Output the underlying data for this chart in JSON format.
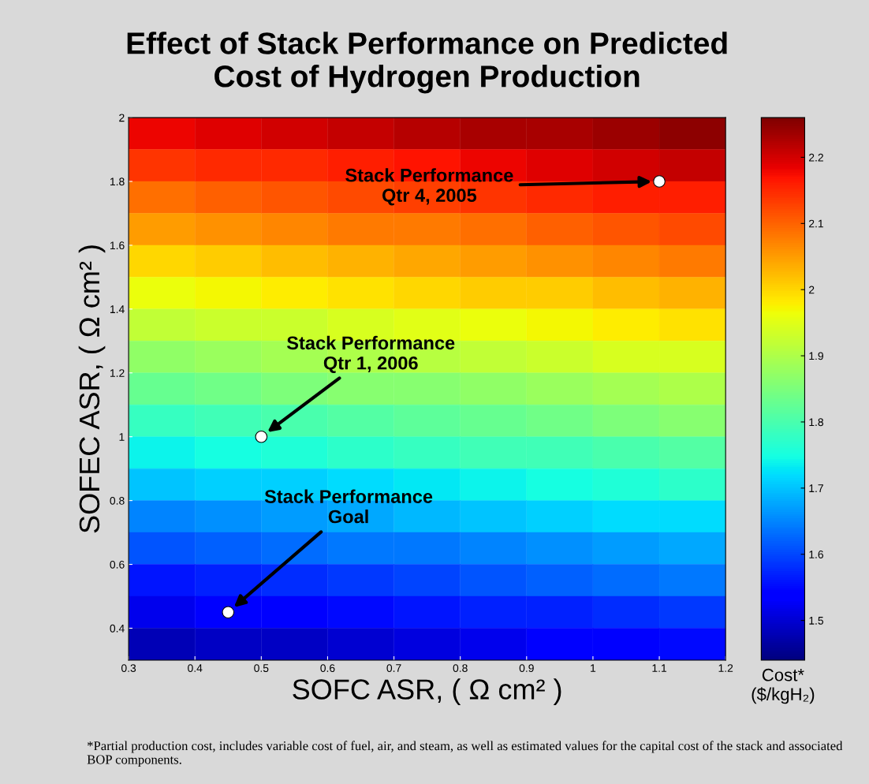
{
  "chart_data": {
    "type": "heatmap",
    "title": "Effect of Stack Performance on Predicted\nCost of Hydrogen Production",
    "xlabel": "SOFC ASR, ( Ω cm² )",
    "ylabel": "SOFEC ASR, ( Ω cm² )",
    "clabel": "Cost*\n($/kgH₂)",
    "xlim": [
      0.3,
      1.2
    ],
    "ylim": [
      0.3,
      2
    ],
    "xticks": [
      0.3,
      0.4,
      0.5,
      0.6,
      0.7,
      0.8,
      0.9,
      1,
      1.1,
      1.2
    ],
    "yticks": [
      0.4,
      0.6,
      0.8,
      1,
      1.2,
      1.4,
      1.6,
      1.8,
      2
    ],
    "clim": [
      1.44,
      2.26
    ],
    "cticks": [
      1.5,
      1.6,
      1.7,
      1.8,
      1.9,
      2,
      2.1,
      2.2
    ],
    "cells": [
      [
        2.18,
        2.19,
        2.2,
        2.21,
        2.22,
        2.23,
        2.23,
        2.24,
        2.25
      ],
      [
        2.14,
        2.15,
        2.15,
        2.16,
        2.17,
        2.18,
        2.19,
        2.2,
        2.21
      ],
      [
        2.09,
        2.1,
        2.11,
        2.12,
        2.13,
        2.14,
        2.15,
        2.16,
        2.16
      ],
      [
        2.05,
        2.06,
        2.07,
        2.08,
        2.08,
        2.09,
        2.1,
        2.11,
        2.12
      ],
      [
        2.0,
        2.01,
        2.02,
        2.03,
        2.04,
        2.05,
        2.06,
        2.07,
        2.08
      ],
      [
        1.96,
        1.97,
        1.98,
        1.99,
        2.0,
        2.01,
        2.01,
        2.02,
        2.03
      ],
      [
        1.92,
        1.93,
        1.93,
        1.94,
        1.95,
        1.96,
        1.97,
        1.98,
        1.99
      ],
      [
        1.87,
        1.88,
        1.89,
        1.9,
        1.91,
        1.92,
        1.93,
        1.94,
        1.94
      ],
      [
        1.83,
        1.84,
        1.85,
        1.86,
        1.86,
        1.87,
        1.88,
        1.89,
        1.9
      ],
      [
        1.78,
        1.79,
        1.8,
        1.81,
        1.82,
        1.83,
        1.84,
        1.85,
        1.86
      ],
      [
        1.74,
        1.75,
        1.76,
        1.77,
        1.78,
        1.79,
        1.79,
        1.8,
        1.81
      ],
      [
        1.7,
        1.71,
        1.71,
        1.72,
        1.73,
        1.74,
        1.75,
        1.76,
        1.77
      ],
      [
        1.65,
        1.66,
        1.67,
        1.68,
        1.69,
        1.7,
        1.71,
        1.72,
        1.72
      ],
      [
        1.61,
        1.62,
        1.63,
        1.64,
        1.64,
        1.65,
        1.66,
        1.67,
        1.68
      ],
      [
        1.56,
        1.57,
        1.58,
        1.59,
        1.6,
        1.61,
        1.62,
        1.63,
        1.64
      ],
      [
        1.52,
        1.53,
        1.54,
        1.55,
        1.56,
        1.57,
        1.57,
        1.58,
        1.59
      ],
      [
        1.48,
        1.49,
        1.49,
        1.5,
        1.51,
        1.52,
        1.53,
        1.54,
        1.55
      ]
    ],
    "series": [
      {
        "type": "scatter",
        "color": "#ffffff",
        "x": [
          1.1,
          0.5,
          0.45
        ],
        "values": [
          1.8,
          1,
          0.45
        ]
      }
    ],
    "marker": "circle",
    "annotations": [
      "Stack Performance\nQtr 4, 2005",
      "Stack Performance\nQtr 1, 2006",
      "Stack Performance\nGoal",
      "*Partial production cost, includes variable cost of fuel, air, and steam, as well as estimated values for the capital cost of the stack and associated BOP components."
    ]
  }
}
